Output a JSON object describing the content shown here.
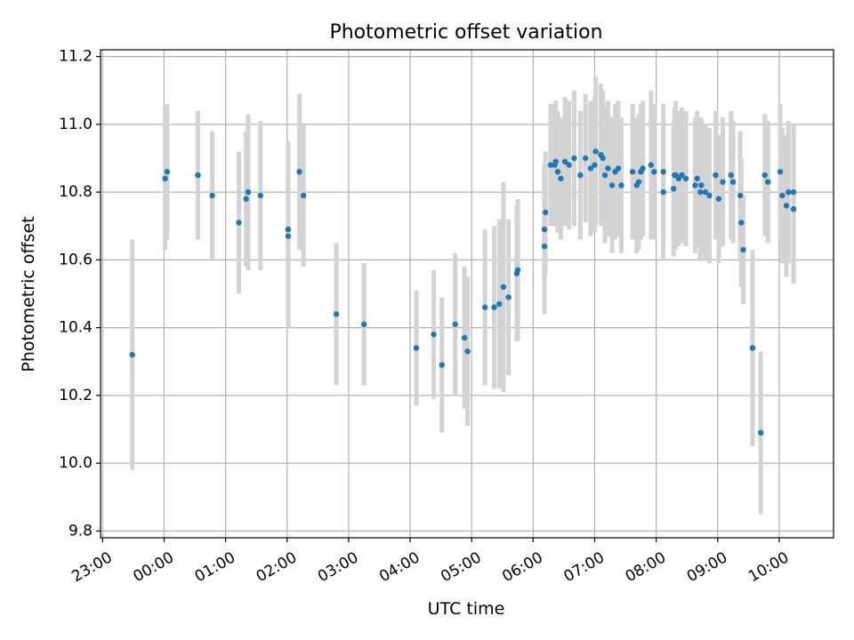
{
  "chart_data": {
    "type": "scatter",
    "title": "Photometric offset variation",
    "xlabel": "UTC time",
    "ylabel": "Photometric offset",
    "x_unit": "UTC time (HH:MM)",
    "xlim": [
      "22:58",
      "10:53"
    ],
    "ylim": [
      9.78,
      11.22
    ],
    "x_ticks": [
      "23:00",
      "00:00",
      "01:00",
      "02:00",
      "03:00",
      "04:00",
      "05:00",
      "06:00",
      "07:00",
      "08:00",
      "09:00",
      "10:00"
    ],
    "y_ticks": [
      "9.8",
      "10.0",
      "10.2",
      "10.4",
      "10.6",
      "10.8",
      "11.0",
      "11.2"
    ],
    "grid": true,
    "colors": {
      "points": "#1f77b4",
      "errorbars": "#d3d3d3",
      "grid": "#b0b0b0"
    },
    "series": [
      {
        "x": [
          "23:29",
          "00:01",
          "00:03",
          "00:33",
          "00:47",
          "01:13",
          "01:20",
          "01:22",
          "01:34",
          "02:01",
          "02:01",
          "02:12",
          "02:16",
          "02:48",
          "03:15",
          "04:06",
          "04:23",
          "04:31",
          "04:44",
          "04:53",
          "04:56",
          "05:13",
          "05:22",
          "05:27",
          "05:31",
          "05:36",
          "05:44",
          "05:45",
          "06:11",
          "06:11",
          "06:12",
          "06:17",
          "06:21",
          "06:22",
          "06:24",
          "06:27",
          "06:31",
          "06:35",
          "06:40",
          "06:46",
          "06:51",
          "06:56",
          "07:00",
          "07:01",
          "07:06",
          "07:08",
          "07:10",
          "07:13",
          "07:17",
          "07:20",
          "07:23",
          "07:26",
          "07:37",
          "07:41",
          "07:43",
          "07:45",
          "07:47",
          "07:55",
          "07:58",
          "08:07",
          "08:07",
          "08:17",
          "08:18",
          "08:19",
          "08:22",
          "08:25",
          "08:29",
          "08:38",
          "08:40",
          "08:43",
          "08:44",
          "08:48",
          "08:52",
          "08:58",
          "09:01",
          "09:05",
          "09:13",
          "09:15",
          "09:22",
          "09:23",
          "09:25",
          "09:34",
          "09:42",
          "09:46",
          "09:49",
          "10:01",
          "10:03",
          "10:07",
          "10:09",
          "10:14",
          "10:14"
        ],
        "y": [
          10.32,
          10.84,
          10.86,
          10.85,
          10.79,
          10.71,
          10.78,
          10.8,
          10.79,
          10.67,
          10.69,
          10.86,
          10.79,
          10.44,
          10.41,
          10.34,
          10.38,
          10.29,
          10.41,
          10.37,
          10.33,
          10.46,
          10.46,
          10.47,
          10.52,
          10.49,
          10.56,
          10.57,
          10.64,
          10.69,
          10.74,
          10.88,
          10.88,
          10.89,
          10.86,
          10.84,
          10.89,
          10.88,
          10.9,
          10.85,
          10.9,
          10.87,
          10.88,
          10.92,
          10.91,
          10.9,
          10.85,
          10.87,
          10.82,
          10.86,
          10.87,
          10.82,
          10.86,
          10.82,
          10.83,
          10.86,
          10.87,
          10.88,
          10.86,
          10.86,
          10.8,
          10.81,
          10.85,
          10.85,
          10.84,
          10.85,
          10.84,
          10.82,
          10.84,
          10.8,
          10.82,
          10.8,
          10.79,
          10.85,
          10.78,
          10.83,
          10.85,
          10.83,
          10.79,
          10.71,
          10.63,
          10.34,
          10.09,
          10.85,
          10.83,
          10.86,
          10.79,
          10.76,
          10.8,
          10.75,
          10.8
        ],
        "yerr": [
          0.34,
          0.21,
          0.2,
          0.19,
          0.19,
          0.21,
          0.2,
          0.23,
          0.22,
          0.27,
          0.26,
          0.23,
          0.21,
          0.21,
          0.18,
          0.17,
          0.19,
          0.2,
          0.21,
          0.21,
          0.22,
          0.23,
          0.24,
          0.25,
          0.31,
          0.23,
          0.2,
          0.21,
          0.2,
          0.19,
          0.18,
          0.18,
          0.18,
          0.18,
          0.18,
          0.18,
          0.19,
          0.19,
          0.2,
          0.19,
          0.19,
          0.2,
          0.2,
          0.22,
          0.21,
          0.2,
          0.2,
          0.2,
          0.2,
          0.2,
          0.2,
          0.2,
          0.2,
          0.2,
          0.2,
          0.2,
          0.2,
          0.22,
          0.2,
          0.2,
          0.2,
          0.2,
          0.2,
          0.22,
          0.2,
          0.2,
          0.2,
          0.2,
          0.2,
          0.2,
          0.2,
          0.2,
          0.2,
          0.19,
          0.19,
          0.19,
          0.19,
          0.18,
          0.19,
          0.19,
          0.16,
          0.29,
          0.24,
          0.18,
          0.18,
          0.2,
          0.2,
          0.21,
          0.21,
          0.22,
          0.2
        ]
      }
    ]
  }
}
